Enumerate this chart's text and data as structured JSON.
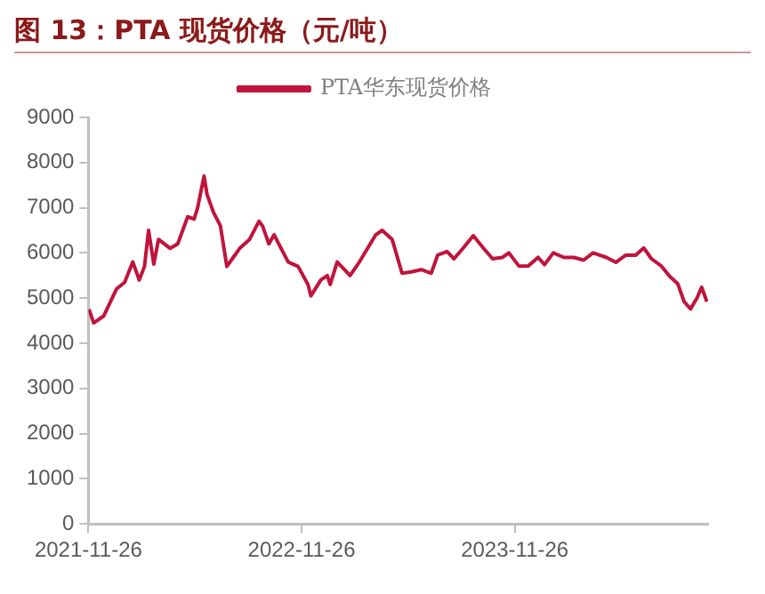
{
  "chart_data": {
    "type": "line",
    "title": "图 13：PTA 现货价格（元/吨）",
    "x": [
      "2021-11-27",
      "2021-12-05",
      "2021-12-22",
      "2022-01-13",
      "2022-01-27",
      "2022-02-10",
      "2022-02-21",
      "2022-03-02",
      "2022-03-09",
      "2022-03-18",
      "2022-03-26",
      "2022-04-15",
      "2022-04-28",
      "2022-05-15",
      "2022-05-26",
      "2022-06-01",
      "2022-06-12",
      "2022-06-17",
      "2022-06-28",
      "2022-07-10",
      "2022-07-21",
      "2022-08-01",
      "2022-08-12",
      "2022-08-29",
      "2022-09-14",
      "2022-09-20",
      "2022-10-01",
      "2022-10-10",
      "2022-11-03",
      "2022-11-20",
      "2022-12-07",
      "2022-12-12",
      "2022-12-29",
      "2023-01-09",
      "2023-01-14",
      "2023-01-26",
      "2023-02-17",
      "2023-03-05",
      "2023-04-02",
      "2023-04-13",
      "2023-04-30",
      "2023-05-17",
      "2023-06-02",
      "2023-06-19",
      "2023-07-06",
      "2023-07-17",
      "2023-08-02",
      "2023-08-14",
      "2023-08-30",
      "2023-09-16",
      "2023-10-03",
      "2023-10-19",
      "2023-11-05",
      "2023-11-16",
      "2023-12-03",
      "2023-12-19",
      "2024-01-05",
      "2024-01-16",
      "2024-01-31",
      "2024-02-18",
      "2024-03-06",
      "2024-03-23",
      "2024-04-08",
      "2024-05-01",
      "2024-05-17",
      "2024-06-03",
      "2024-06-20",
      "2024-07-04",
      "2024-07-17",
      "2024-08-03",
      "2024-08-18",
      "2024-08-31",
      "2024-09-11",
      "2024-09-22",
      "2024-10-03",
      "2024-10-11",
      "2024-10-20"
    ],
    "series": [
      {
        "name": "PTA华东现货价格",
        "color": "#c0143c",
        "values": [
          4750,
          4450,
          4600,
          5200,
          5350,
          5800,
          5400,
          5700,
          6500,
          5750,
          6300,
          6100,
          6200,
          6800,
          6750,
          7000,
          7700,
          7300,
          6900,
          6600,
          5700,
          5900,
          6100,
          6300,
          6700,
          6600,
          6200,
          6400,
          5800,
          5700,
          5300,
          5050,
          5400,
          5500,
          5300,
          5800,
          5500,
          5800,
          6400,
          6500,
          6300,
          5550,
          5580,
          5630,
          5550,
          5950,
          6030,
          5870,
          6110,
          6380,
          6110,
          5870,
          5900,
          6000,
          5710,
          5710,
          5900,
          5740,
          6000,
          5900,
          5900,
          5840,
          6000,
          5900,
          5790,
          5950,
          5950,
          6110,
          5870,
          5710,
          5470,
          5320,
          4920,
          4760,
          5000,
          5240,
          4920
        ]
      }
    ],
    "xlim": [
      "2021-11-26",
      "2024-10-22"
    ],
    "xticks": [
      "2021-11-26",
      "2022-11-26",
      "2023-11-26"
    ],
    "ylim": [
      0,
      9000
    ],
    "yticks": [
      0,
      1000,
      2000,
      3000,
      4000,
      5000,
      6000,
      7000,
      8000,
      9000
    ],
    "grid": false,
    "legend": "top",
    "marker": "none",
    "line_style": "solid"
  }
}
